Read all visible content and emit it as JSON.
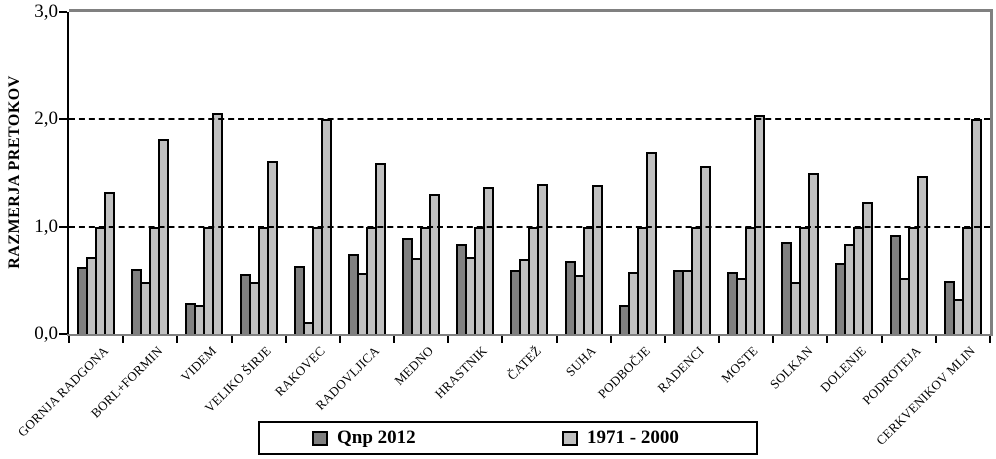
{
  "chart_data": {
    "type": "bar",
    "title": "",
    "xlabel": "",
    "ylabel": "RAZMERJA PRETOKOV",
    "ylim": [
      0,
      3
    ],
    "ytick_values": [
      0,
      1,
      2,
      3
    ],
    "ytick_labels": [
      "0,0",
      "1,0",
      "2,0",
      "3,0"
    ],
    "dashed_gridlines_at": [
      1,
      2
    ],
    "grid": "horizontal-dashed",
    "legend_position": "bottom",
    "colors": {
      "qnp2012": "#808080",
      "p1971_2000": "#c0c0c0",
      "frame": "#808080",
      "axis": "#000000",
      "bar_border": "#000000"
    },
    "legend": [
      {
        "label": "Qnp 2012",
        "color": "#808080"
      },
      {
        "label": "1971 - 2000",
        "color": "#c0c0c0"
      }
    ],
    "categories": [
      "GORNJA RADGONA",
      "BORL+FORMIN",
      "VIDEM",
      "VELIKO ŠIRJE",
      "RAKOVEC",
      "RADOVLJICA",
      "MEDNO",
      "HRASTNIK",
      "ČATEŽ",
      "SUHA",
      "PODBOČJE",
      "RADENCI",
      "MOSTE",
      "SOLKAN",
      "DOLENJE",
      "PODROTEJA",
      "CERKVENIKOV MLIN"
    ],
    "bars_per_group_note": "each station has 4 bars: 1 dark (Qnp 2012) followed by 3 light (1971 - 2000); the third bar is always the 1.0 reference",
    "groups": [
      {
        "station": "GORNJA RADGONA",
        "qnp2012": 0.62,
        "p1971_2000": [
          0.72,
          1.0,
          1.32
        ]
      },
      {
        "station": "BORL+FORMIN",
        "qnp2012": 0.61,
        "p1971_2000": [
          0.48,
          1.0,
          1.82
        ]
      },
      {
        "station": "VIDEM",
        "qnp2012": 0.29,
        "p1971_2000": [
          0.27,
          1.0,
          2.06
        ]
      },
      {
        "station": "VELIKO ŠIRJE",
        "qnp2012": 0.56,
        "p1971_2000": [
          0.48,
          1.0,
          1.61
        ]
      },
      {
        "station": "RAKOVEC",
        "qnp2012": 0.63,
        "p1971_2000": [
          0.11,
          1.0,
          2.0
        ]
      },
      {
        "station": "RADOVLJICA",
        "qnp2012": 0.75,
        "p1971_2000": [
          0.57,
          1.0,
          1.59
        ]
      },
      {
        "station": "MEDNO",
        "qnp2012": 0.89,
        "p1971_2000": [
          0.71,
          1.0,
          1.3
        ]
      },
      {
        "station": "HRASTNIK",
        "qnp2012": 0.84,
        "p1971_2000": [
          0.72,
          1.0,
          1.37
        ]
      },
      {
        "station": "ČATEŽ",
        "qnp2012": 0.6,
        "p1971_2000": [
          0.7,
          1.0,
          1.4
        ]
      },
      {
        "station": "SUHA",
        "qnp2012": 0.68,
        "p1971_2000": [
          0.55,
          1.0,
          1.39
        ]
      },
      {
        "station": "PODBOČJE",
        "qnp2012": 0.27,
        "p1971_2000": [
          0.58,
          1.0,
          1.7
        ]
      },
      {
        "station": "RADENCI",
        "qnp2012": 0.6,
        "p1971_2000": [
          0.6,
          1.0,
          1.57
        ]
      },
      {
        "station": "MOSTE",
        "qnp2012": 0.58,
        "p1971_2000": [
          0.52,
          1.0,
          2.04
        ]
      },
      {
        "station": "SOLKAN",
        "qnp2012": 0.86,
        "p1971_2000": [
          0.48,
          1.0,
          1.5
        ]
      },
      {
        "station": "DOLENJE",
        "qnp2012": 0.66,
        "p1971_2000": [
          0.84,
          1.0,
          1.23
        ]
      },
      {
        "station": "PODROTEJA",
        "qnp2012": 0.92,
        "p1971_2000": [
          0.52,
          1.0,
          1.47
        ]
      },
      {
        "station": "CERKVENIKOV MLIN",
        "qnp2012": 0.49,
        "p1971_2000": [
          0.33,
          1.0,
          2.0
        ]
      }
    ]
  }
}
